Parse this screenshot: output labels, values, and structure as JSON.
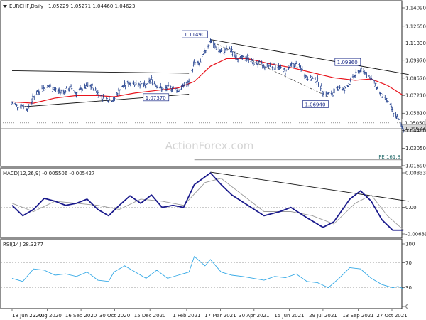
{
  "chart_data": [
    {
      "panel": "price",
      "type": "ohlc-bar",
      "title": "EURCHF,Daily",
      "quote": "1.05229 1.05271 1.04460 1.04623",
      "ohlc": {
        "open": 1.05229,
        "high": 1.05271,
        "low": 1.0446,
        "close": 1.04623
      },
      "ylim": [
        1.0169,
        1.1428
      ],
      "y_ticks": [
        "1.14090",
        "1.12650",
        "1.11330",
        "1.09970",
        "1.08570",
        "1.07210",
        "1.05810",
        "1.04460",
        "1.03050",
        "1.01690"
      ],
      "x_ticks": [
        "18 Jun 2020",
        "3 Aug 2020",
        "16 Sep 2020",
        "30 Oct 2020",
        "15 Dec 2020",
        "1 Feb 2021",
        "17 Mar 2021",
        "30 Apr 2021",
        "15 Jun 2021",
        "29 Jul 2021",
        "13 Sep 2021",
        "27 Oct 2021"
      ],
      "price_series": [
        {
          "date": "2020-06-18",
          "close": 1.066
        },
        {
          "date": "2020-06-25",
          "close": 1.064
        },
        {
          "date": "2020-07-02",
          "close": 1.064
        },
        {
          "date": "2020-07-09",
          "close": 1.062
        },
        {
          "date": "2020-07-16",
          "close": 1.071
        },
        {
          "date": "2020-07-23",
          "close": 1.076
        },
        {
          "date": "2020-07-30",
          "close": 1.078
        },
        {
          "date": "2020-08-06",
          "close": 1.079
        },
        {
          "date": "2020-08-13",
          "close": 1.077
        },
        {
          "date": "2020-08-20",
          "close": 1.075
        },
        {
          "date": "2020-08-27",
          "close": 1.076
        },
        {
          "date": "2020-09-03",
          "close": 1.078
        },
        {
          "date": "2020-09-10",
          "close": 1.074
        },
        {
          "date": "2020-09-17",
          "close": 1.077
        },
        {
          "date": "2020-09-24",
          "close": 1.079
        },
        {
          "date": "2020-10-01",
          "close": 1.079
        },
        {
          "date": "2020-10-08",
          "close": 1.074
        },
        {
          "date": "2020-10-15",
          "close": 1.07
        },
        {
          "date": "2020-10-22",
          "close": 1.069
        },
        {
          "date": "2020-10-29",
          "close": 1.069
        },
        {
          "date": "2020-11-05",
          "close": 1.076
        },
        {
          "date": "2020-11-12",
          "close": 1.08
        },
        {
          "date": "2020-11-19",
          "close": 1.082
        },
        {
          "date": "2020-11-26",
          "close": 1.082
        },
        {
          "date": "2020-12-03",
          "close": 1.081
        },
        {
          "date": "2020-12-10",
          "close": 1.079
        },
        {
          "date": "2020-12-17",
          "close": 1.085
        },
        {
          "date": "2020-12-24",
          "close": 1.08
        },
        {
          "date": "2020-12-31",
          "close": 1.077
        },
        {
          "date": "2021-01-07",
          "close": 1.078
        },
        {
          "date": "2021-01-14",
          "close": 1.078
        },
        {
          "date": "2021-01-21",
          "close": 1.076
        },
        {
          "date": "2021-01-28",
          "close": 1.08
        },
        {
          "date": "2021-02-04",
          "close": 1.082
        },
        {
          "date": "2021-02-11",
          "close": 1.098
        },
        {
          "date": "2021-02-18",
          "close": 1.096
        },
        {
          "date": "2021-02-25",
          "close": 1.107
        },
        {
          "date": "2021-03-04",
          "close": 1.1149
        },
        {
          "date": "2021-03-11",
          "close": 1.11
        },
        {
          "date": "2021-03-18",
          "close": 1.106
        },
        {
          "date": "2021-03-25",
          "close": 1.108
        },
        {
          "date": "2021-04-01",
          "close": 1.107
        },
        {
          "date": "2021-04-08",
          "close": 1.102
        },
        {
          "date": "2021-04-15",
          "close": 1.101
        },
        {
          "date": "2021-04-22",
          "close": 1.102
        },
        {
          "date": "2021-04-29",
          "close": 1.098
        },
        {
          "date": "2021-05-06",
          "close": 1.097
        },
        {
          "date": "2021-05-13",
          "close": 1.095
        },
        {
          "date": "2021-05-20",
          "close": 1.096
        },
        {
          "date": "2021-05-27",
          "close": 1.095
        },
        {
          "date": "2021-06-03",
          "close": 1.094
        },
        {
          "date": "2021-06-10",
          "close": 1.091
        },
        {
          "date": "2021-06-17",
          "close": 1.096
        },
        {
          "date": "2021-06-24",
          "close": 1.096
        },
        {
          "date": "2021-07-01",
          "close": 1.093
        },
        {
          "date": "2021-07-08",
          "close": 1.086
        },
        {
          "date": "2021-07-15",
          "close": 1.085
        },
        {
          "date": "2021-07-22",
          "close": 1.084
        },
        {
          "date": "2021-07-29",
          "close": 1.075
        },
        {
          "date": "2021-08-05",
          "close": 1.073
        },
        {
          "date": "2021-08-12",
          "close": 1.074
        },
        {
          "date": "2021-08-19",
          "close": 1.079
        },
        {
          "date": "2021-08-26",
          "close": 1.076
        },
        {
          "date": "2021-09-02",
          "close": 1.082
        },
        {
          "date": "2021-09-09",
          "close": 1.088
        },
        {
          "date": "2021-09-16",
          "close": 1.092
        },
        {
          "date": "2021-09-23",
          "close": 1.09
        },
        {
          "date": "2021-09-30",
          "close": 1.085
        },
        {
          "date": "2021-10-07",
          "close": 1.079
        },
        {
          "date": "2021-10-14",
          "close": 1.071
        },
        {
          "date": "2021-10-21",
          "close": 1.068
        },
        {
          "date": "2021-10-28",
          "close": 1.06
        },
        {
          "date": "2021-11-04",
          "close": 1.053
        },
        {
          "date": "2021-11-11",
          "close": 1.0462
        }
      ],
      "ma_series": [
        {
          "date": "2020-06-18",
          "value": 1.067
        },
        {
          "date": "2020-07-16",
          "value": 1.066
        },
        {
          "date": "2020-08-13",
          "value": 1.07
        },
        {
          "date": "2020-09-10",
          "value": 1.072
        },
        {
          "date": "2020-10-08",
          "value": 1.072
        },
        {
          "date": "2020-10-29",
          "value": 1.071
        },
        {
          "date": "2020-11-26",
          "value": 1.074
        },
        {
          "date": "2020-12-24",
          "value": 1.076
        },
        {
          "date": "2021-01-21",
          "value": 1.078
        },
        {
          "date": "2021-02-11",
          "value": 1.083
        },
        {
          "date": "2021-03-04",
          "value": 1.095
        },
        {
          "date": "2021-03-25",
          "value": 1.101
        },
        {
          "date": "2021-04-22",
          "value": 1.101
        },
        {
          "date": "2021-05-20",
          "value": 1.097
        },
        {
          "date": "2021-06-17",
          "value": 1.094
        },
        {
          "date": "2021-07-15",
          "value": 1.09
        },
        {
          "date": "2021-08-12",
          "value": 1.086
        },
        {
          "date": "2021-09-09",
          "value": 1.084
        },
        {
          "date": "2021-09-30",
          "value": 1.085
        },
        {
          "date": "2021-10-21",
          "value": 1.08
        },
        {
          "date": "2021-11-11",
          "value": 1.072
        }
      ],
      "trendlines": [
        {
          "from": {
            "date": "2020-06-18",
            "value": 1.0915
          },
          "to": {
            "date": "2021-02-04",
            "value": 1.0895
          }
        },
        {
          "from": {
            "date": "2020-06-25",
            "value": 1.0628
          },
          "to": {
            "date": "2021-02-04",
            "value": 1.073
          }
        },
        {
          "from": {
            "date": "2021-03-04",
            "value": 1.116
          },
          "to": {
            "date": "2021-11-18",
            "value": 1.0885
          }
        }
      ],
      "dashed_lines": [
        {
          "from": {
            "date": "2021-03-04",
            "value": 1.1149
          },
          "to": {
            "date": "2021-08-05",
            "value": 1.071
          }
        }
      ],
      "annotations": [
        {
          "label": "1.11490",
          "date": "2021-03-04",
          "value": 1.1149
        },
        {
          "label": "1.07370",
          "date": "2020-12-10",
          "value": 1.0737
        },
        {
          "label": "1.06940",
          "date": "2021-08-05",
          "value": 1.0694
        },
        {
          "label": "1.09360",
          "date": "2021-09-16",
          "value": 1.0936
        }
      ],
      "levels": [
        {
          "value": 1.0505,
          "label": "1.05050",
          "style": "dotted"
        },
        {
          "value": 1.04623,
          "label": "1.04623",
          "style": "current"
        },
        {
          "value": 1.0215,
          "label": "FE 161.8",
          "style": "solid",
          "from_date": "2021-02-11"
        }
      ],
      "watermark": "ActionForex.com"
    },
    {
      "panel": "macd",
      "type": "line",
      "title": "MACD(12,26,9) -0.005506 -0.005427",
      "ylim": [
        -0.0074,
        0.0092
      ],
      "y_ticks": [
        "0.008334",
        "0.00",
        "-0.006393"
      ],
      "zero_line": 0,
      "macd_series": [
        {
          "date": "2020-06-18",
          "value": 0.0005
        },
        {
          "date": "2020-07-02",
          "value": -0.002
        },
        {
          "date": "2020-07-16",
          "value": -0.0005
        },
        {
          "date": "2020-07-30",
          "value": 0.0022
        },
        {
          "date": "2020-08-13",
          "value": 0.0015
        },
        {
          "date": "2020-08-27",
          "value": 0.0005
        },
        {
          "date": "2020-09-10",
          "value": 0.001
        },
        {
          "date": "2020-09-24",
          "value": 0.002
        },
        {
          "date": "2020-10-08",
          "value": -0.0005
        },
        {
          "date": "2020-10-22",
          "value": -0.002
        },
        {
          "date": "2020-11-05",
          "value": 0.0005
        },
        {
          "date": "2020-11-19",
          "value": 0.0028
        },
        {
          "date": "2020-12-03",
          "value": 0.001
        },
        {
          "date": "2020-12-17",
          "value": 0.003
        },
        {
          "date": "2020-12-31",
          "value": 0.0
        },
        {
          "date": "2021-01-14",
          "value": 0.0005
        },
        {
          "date": "2021-01-28",
          "value": 0.0
        },
        {
          "date": "2021-02-11",
          "value": 0.0055
        },
        {
          "date": "2021-03-04",
          "value": 0.0083
        },
        {
          "date": "2021-03-18",
          "value": 0.0055
        },
        {
          "date": "2021-04-01",
          "value": 0.003
        },
        {
          "date": "2021-04-22",
          "value": 0.0005
        },
        {
          "date": "2021-05-13",
          "value": -0.002
        },
        {
          "date": "2021-06-03",
          "value": -0.001
        },
        {
          "date": "2021-06-17",
          "value": 0.0
        },
        {
          "date": "2021-07-08",
          "value": -0.0025
        },
        {
          "date": "2021-07-29",
          "value": -0.0048
        },
        {
          "date": "2021-08-12",
          "value": -0.0035
        },
        {
          "date": "2021-09-02",
          "value": 0.002
        },
        {
          "date": "2021-09-16",
          "value": 0.004
        },
        {
          "date": "2021-09-30",
          "value": 0.0015
        },
        {
          "date": "2021-10-14",
          "value": -0.003
        },
        {
          "date": "2021-10-28",
          "value": -0.0055
        },
        {
          "date": "2021-11-11",
          "value": -0.0055
        }
      ],
      "signal_series": [
        {
          "date": "2020-06-18",
          "value": 0.001
        },
        {
          "date": "2020-07-16",
          "value": -0.001
        },
        {
          "date": "2020-08-13",
          "value": 0.0015
        },
        {
          "date": "2020-09-10",
          "value": 0.001
        },
        {
          "date": "2020-10-08",
          "value": 0.0005
        },
        {
          "date": "2020-11-05",
          "value": -0.0005
        },
        {
          "date": "2020-12-03",
          "value": 0.002
        },
        {
          "date": "2020-12-31",
          "value": 0.0015
        },
        {
          "date": "2021-01-28",
          "value": 0.0005
        },
        {
          "date": "2021-02-25",
          "value": 0.006
        },
        {
          "date": "2021-03-18",
          "value": 0.007
        },
        {
          "date": "2021-04-15",
          "value": 0.003
        },
        {
          "date": "2021-05-13",
          "value": -0.001
        },
        {
          "date": "2021-06-17",
          "value": -0.001
        },
        {
          "date": "2021-07-15",
          "value": -0.002
        },
        {
          "date": "2021-08-12",
          "value": -0.004
        },
        {
          "date": "2021-09-09",
          "value": 0.001
        },
        {
          "date": "2021-09-30",
          "value": 0.003
        },
        {
          "date": "2021-10-21",
          "value": -0.002
        },
        {
          "date": "2021-11-11",
          "value": -0.0054
        }
      ],
      "trendline": {
        "from": {
          "date": "2021-03-04",
          "value": 0.0085
        },
        "to": {
          "date": "2021-11-18",
          "value": 0.0015
        }
      }
    },
    {
      "panel": "rsi",
      "type": "line",
      "title": "RSI(14) 28.3277",
      "ylim": [
        0,
        100
      ],
      "y_ticks": [
        "100",
        "70",
        "30",
        "0"
      ],
      "levels": [
        70,
        30
      ],
      "rsi_series": [
        {
          "date": "2020-06-18",
          "value": 45
        },
        {
          "date": "2020-07-02",
          "value": 40
        },
        {
          "date": "2020-07-16",
          "value": 60
        },
        {
          "date": "2020-07-30",
          "value": 58
        },
        {
          "date": "2020-08-13",
          "value": 50
        },
        {
          "date": "2020-08-27",
          "value": 52
        },
        {
          "date": "2020-09-10",
          "value": 48
        },
        {
          "date": "2020-09-24",
          "value": 55
        },
        {
          "date": "2020-10-08",
          "value": 42
        },
        {
          "date": "2020-10-22",
          "value": 40
        },
        {
          "date": "2020-10-29",
          "value": 55
        },
        {
          "date": "2020-11-12",
          "value": 65
        },
        {
          "date": "2020-11-26",
          "value": 55
        },
        {
          "date": "2020-12-10",
          "value": 45
        },
        {
          "date": "2020-12-24",
          "value": 58
        },
        {
          "date": "2021-01-07",
          "value": 45
        },
        {
          "date": "2021-01-21",
          "value": 50
        },
        {
          "date": "2021-02-04",
          "value": 55
        },
        {
          "date": "2021-02-11",
          "value": 80
        },
        {
          "date": "2021-02-25",
          "value": 65
        },
        {
          "date": "2021-03-04",
          "value": 75
        },
        {
          "date": "2021-03-18",
          "value": 55
        },
        {
          "date": "2021-04-01",
          "value": 50
        },
        {
          "date": "2021-04-15",
          "value": 48
        },
        {
          "date": "2021-04-29",
          "value": 45
        },
        {
          "date": "2021-05-13",
          "value": 42
        },
        {
          "date": "2021-05-27",
          "value": 48
        },
        {
          "date": "2021-06-10",
          "value": 46
        },
        {
          "date": "2021-06-24",
          "value": 52
        },
        {
          "date": "2021-07-08",
          "value": 40
        },
        {
          "date": "2021-07-22",
          "value": 38
        },
        {
          "date": "2021-08-05",
          "value": 30
        },
        {
          "date": "2021-08-19",
          "value": 45
        },
        {
          "date": "2021-09-02",
          "value": 62
        },
        {
          "date": "2021-09-16",
          "value": 60
        },
        {
          "date": "2021-09-30",
          "value": 45
        },
        {
          "date": "2021-10-14",
          "value": 35
        },
        {
          "date": "2021-10-28",
          "value": 30
        },
        {
          "date": "2021-11-04",
          "value": 32
        },
        {
          "date": "2021-11-11",
          "value": 28.3
        }
      ]
    }
  ]
}
